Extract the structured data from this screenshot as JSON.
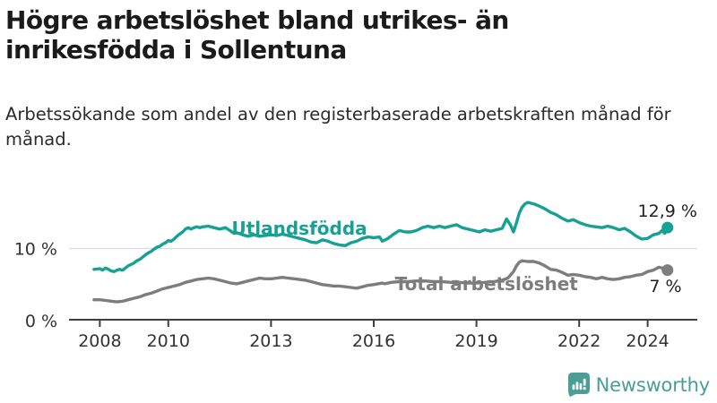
{
  "header": {
    "title_line1": "Högre arbetslöshet bland utrikes- än",
    "title_line2": "inrikesfödda i Sollentuna",
    "subtitle": "Arbetssökande som andel av den registerbaserade arbetskraften månad för månad."
  },
  "footer": {
    "brand": "Newsworthy",
    "logo_icon": "speech-bubble-bar-chart"
  },
  "colors": {
    "accent_teal": "#17A094",
    "line_gray": "#7D7D7D",
    "grid": "#DCDCDC",
    "axis": "#3F3F3F",
    "tick_text": "#333333",
    "end_label_text": "#222222",
    "logo_teal": "#4D9D97"
  },
  "chart_data": {
    "type": "line",
    "title": "Högre arbetslöshet bland utrikes- än inrikesfödda i Sollentuna",
    "xlabel": "",
    "ylabel": "Arbetssökande som andel av den registerbaserade arbetskraften",
    "grid": "horizontal-10-only",
    "legend_position": "inline-labels",
    "xlim": [
      2007.1,
      2025.45
    ],
    "ylim": [
      0,
      18
    ],
    "y_ticks": [
      {
        "value": 0,
        "label": "0 %"
      },
      {
        "value": 10,
        "label": "10 %"
      }
    ],
    "x_ticks": [
      {
        "value": 2008,
        "label": "2008"
      },
      {
        "value": 2010,
        "label": "2010"
      },
      {
        "value": 2013,
        "label": "2013"
      },
      {
        "value": 2016,
        "label": "2016"
      },
      {
        "value": 2019,
        "label": "2019"
      },
      {
        "value": 2022,
        "label": "2022"
      },
      {
        "value": 2024,
        "label": "2024"
      }
    ],
    "series": [
      {
        "name": "Utlandsfödda",
        "color": "#17A094",
        "end_value": 12.9,
        "end_label": "12,9 %",
        "points": [
          [
            2007.83,
            7.1
          ],
          [
            2008.0,
            7.2
          ],
          [
            2008.08,
            7.0
          ],
          [
            2008.17,
            7.3
          ],
          [
            2008.25,
            7.1
          ],
          [
            2008.33,
            6.9
          ],
          [
            2008.42,
            6.8
          ],
          [
            2008.5,
            7.0
          ],
          [
            2008.58,
            7.1
          ],
          [
            2008.67,
            7.0
          ],
          [
            2008.75,
            7.3
          ],
          [
            2008.83,
            7.6
          ],
          [
            2008.92,
            7.8
          ],
          [
            2009.0,
            8.0
          ],
          [
            2009.08,
            8.3
          ],
          [
            2009.17,
            8.5
          ],
          [
            2009.25,
            8.8
          ],
          [
            2009.33,
            9.1
          ],
          [
            2009.42,
            9.4
          ],
          [
            2009.5,
            9.6
          ],
          [
            2009.58,
            9.9
          ],
          [
            2009.67,
            10.2
          ],
          [
            2009.75,
            10.3
          ],
          [
            2009.83,
            10.6
          ],
          [
            2009.92,
            10.8
          ],
          [
            2010.0,
            11.1
          ],
          [
            2010.08,
            11.0
          ],
          [
            2010.17,
            11.3
          ],
          [
            2010.25,
            11.7
          ],
          [
            2010.33,
            12.0
          ],
          [
            2010.42,
            12.3
          ],
          [
            2010.5,
            12.7
          ],
          [
            2010.58,
            12.9
          ],
          [
            2010.67,
            12.7
          ],
          [
            2010.75,
            12.9
          ],
          [
            2010.83,
            13.0
          ],
          [
            2010.92,
            12.9
          ],
          [
            2011.0,
            13.0
          ],
          [
            2011.17,
            13.1
          ],
          [
            2011.33,
            12.9
          ],
          [
            2011.5,
            12.7
          ],
          [
            2011.67,
            12.9
          ],
          [
            2011.83,
            12.4
          ],
          [
            2011.92,
            12.1
          ],
          [
            2012.0,
            12.2
          ],
          [
            2012.17,
            11.9
          ],
          [
            2012.33,
            11.7
          ],
          [
            2012.5,
            11.9
          ],
          [
            2012.67,
            11.7
          ],
          [
            2012.83,
            11.8
          ],
          [
            2013.0,
            11.9
          ],
          [
            2013.17,
            11.8
          ],
          [
            2013.33,
            12.0
          ],
          [
            2013.5,
            11.8
          ],
          [
            2013.67,
            11.6
          ],
          [
            2013.83,
            11.4
          ],
          [
            2014.0,
            11.2
          ],
          [
            2014.17,
            10.9
          ],
          [
            2014.33,
            10.8
          ],
          [
            2014.5,
            11.2
          ],
          [
            2014.67,
            11.0
          ],
          [
            2014.83,
            10.7
          ],
          [
            2015.0,
            10.5
          ],
          [
            2015.17,
            10.4
          ],
          [
            2015.33,
            10.8
          ],
          [
            2015.5,
            11.0
          ],
          [
            2015.67,
            11.4
          ],
          [
            2015.83,
            11.6
          ],
          [
            2016.0,
            11.5
          ],
          [
            2016.17,
            11.6
          ],
          [
            2016.25,
            11.0
          ],
          [
            2016.42,
            11.4
          ],
          [
            2016.58,
            12.0
          ],
          [
            2016.75,
            12.5
          ],
          [
            2016.92,
            12.3
          ],
          [
            2017.08,
            12.3
          ],
          [
            2017.25,
            12.5
          ],
          [
            2017.42,
            12.9
          ],
          [
            2017.58,
            13.1
          ],
          [
            2017.75,
            12.9
          ],
          [
            2017.92,
            13.1
          ],
          [
            2018.08,
            12.9
          ],
          [
            2018.25,
            13.1
          ],
          [
            2018.42,
            13.3
          ],
          [
            2018.58,
            12.9
          ],
          [
            2018.75,
            12.7
          ],
          [
            2018.92,
            12.5
          ],
          [
            2019.08,
            12.3
          ],
          [
            2019.25,
            12.6
          ],
          [
            2019.42,
            12.4
          ],
          [
            2019.58,
            12.6
          ],
          [
            2019.75,
            12.8
          ],
          [
            2019.88,
            14.1
          ],
          [
            2020.0,
            13.2
          ],
          [
            2020.08,
            12.3
          ],
          [
            2020.17,
            13.6
          ],
          [
            2020.25,
            14.9
          ],
          [
            2020.33,
            15.7
          ],
          [
            2020.42,
            16.2
          ],
          [
            2020.5,
            16.4
          ],
          [
            2020.67,
            16.2
          ],
          [
            2020.83,
            15.9
          ],
          [
            2021.0,
            15.5
          ],
          [
            2021.17,
            15.0
          ],
          [
            2021.33,
            14.7
          ],
          [
            2021.5,
            14.2
          ],
          [
            2021.67,
            13.8
          ],
          [
            2021.83,
            14.0
          ],
          [
            2022.0,
            13.6
          ],
          [
            2022.17,
            13.3
          ],
          [
            2022.33,
            13.1
          ],
          [
            2022.5,
            13.0
          ],
          [
            2022.67,
            12.9
          ],
          [
            2022.83,
            13.1
          ],
          [
            2023.0,
            12.9
          ],
          [
            2023.17,
            12.6
          ],
          [
            2023.33,
            12.8
          ],
          [
            2023.5,
            12.3
          ],
          [
            2023.67,
            11.7
          ],
          [
            2023.83,
            11.3
          ],
          [
            2024.0,
            11.4
          ],
          [
            2024.17,
            11.9
          ],
          [
            2024.33,
            12.1
          ],
          [
            2024.42,
            12.5
          ],
          [
            2024.5,
            12.1
          ],
          [
            2024.58,
            12.9
          ]
        ]
      },
      {
        "name": "Total arbetslöshet",
        "color": "#7D7D7D",
        "end_value": 7,
        "end_label": "7 %",
        "points": [
          [
            2007.83,
            2.9
          ],
          [
            2008.0,
            2.9
          ],
          [
            2008.17,
            2.8
          ],
          [
            2008.33,
            2.7
          ],
          [
            2008.5,
            2.6
          ],
          [
            2008.67,
            2.7
          ],
          [
            2008.83,
            2.9
          ],
          [
            2009.0,
            3.1
          ],
          [
            2009.17,
            3.3
          ],
          [
            2009.33,
            3.6
          ],
          [
            2009.5,
            3.8
          ],
          [
            2009.67,
            4.1
          ],
          [
            2009.83,
            4.4
          ],
          [
            2010.0,
            4.6
          ],
          [
            2010.17,
            4.8
          ],
          [
            2010.33,
            5.0
          ],
          [
            2010.5,
            5.3
          ],
          [
            2010.67,
            5.5
          ],
          [
            2010.83,
            5.7
          ],
          [
            2011.0,
            5.8
          ],
          [
            2011.17,
            5.9
          ],
          [
            2011.33,
            5.8
          ],
          [
            2011.5,
            5.6
          ],
          [
            2011.67,
            5.4
          ],
          [
            2011.83,
            5.2
          ],
          [
            2012.0,
            5.1
          ],
          [
            2012.17,
            5.3
          ],
          [
            2012.33,
            5.5
          ],
          [
            2012.5,
            5.7
          ],
          [
            2012.67,
            5.9
          ],
          [
            2012.83,
            5.8
          ],
          [
            2013.0,
            5.8
          ],
          [
            2013.17,
            5.9
          ],
          [
            2013.33,
            6.0
          ],
          [
            2013.5,
            5.9
          ],
          [
            2013.67,
            5.8
          ],
          [
            2013.83,
            5.7
          ],
          [
            2014.0,
            5.6
          ],
          [
            2014.17,
            5.4
          ],
          [
            2014.33,
            5.2
          ],
          [
            2014.5,
            5.0
          ],
          [
            2014.67,
            4.9
          ],
          [
            2014.83,
            4.8
          ],
          [
            2015.0,
            4.8
          ],
          [
            2015.17,
            4.7
          ],
          [
            2015.33,
            4.6
          ],
          [
            2015.5,
            4.5
          ],
          [
            2015.67,
            4.7
          ],
          [
            2015.83,
            4.9
          ],
          [
            2016.0,
            5.0
          ],
          [
            2016.25,
            5.2
          ],
          [
            2016.33,
            5.1
          ],
          [
            2016.5,
            5.3
          ],
          [
            2016.75,
            5.4
          ],
          [
            2017.0,
            5.4
          ],
          [
            2017.25,
            5.5
          ],
          [
            2017.5,
            5.5
          ],
          [
            2017.75,
            5.4
          ],
          [
            2018.0,
            5.4
          ],
          [
            2018.25,
            5.3
          ],
          [
            2018.5,
            5.3
          ],
          [
            2018.75,
            5.2
          ],
          [
            2019.0,
            5.2
          ],
          [
            2019.25,
            5.3
          ],
          [
            2019.5,
            5.4
          ],
          [
            2019.75,
            5.6
          ],
          [
            2019.92,
            5.9
          ],
          [
            2020.08,
            6.8
          ],
          [
            2020.17,
            7.6
          ],
          [
            2020.25,
            8.1
          ],
          [
            2020.33,
            8.3
          ],
          [
            2020.5,
            8.2
          ],
          [
            2020.67,
            8.2
          ],
          [
            2020.83,
            8.0
          ],
          [
            2021.0,
            7.6
          ],
          [
            2021.17,
            7.1
          ],
          [
            2021.33,
            7.0
          ],
          [
            2021.5,
            6.7
          ],
          [
            2021.67,
            6.3
          ],
          [
            2021.83,
            6.4
          ],
          [
            2022.0,
            6.3
          ],
          [
            2022.17,
            6.1
          ],
          [
            2022.33,
            6.0
          ],
          [
            2022.5,
            5.8
          ],
          [
            2022.67,
            6.0
          ],
          [
            2022.83,
            5.8
          ],
          [
            2023.0,
            5.7
          ],
          [
            2023.17,
            5.8
          ],
          [
            2023.33,
            6.0
          ],
          [
            2023.5,
            6.1
          ],
          [
            2023.67,
            6.3
          ],
          [
            2023.83,
            6.4
          ],
          [
            2024.0,
            6.8
          ],
          [
            2024.17,
            7.0
          ],
          [
            2024.33,
            7.4
          ],
          [
            2024.5,
            7.2
          ],
          [
            2024.58,
            7.0
          ]
        ]
      }
    ],
    "annotations": [
      {
        "text": "Utlandsfödda",
        "x": 2011.85,
        "y": 11.9,
        "color": "#17A094",
        "bold": true,
        "anchor": "start",
        "size": 20
      },
      {
        "text": "Total arbetslöshet",
        "x": 2016.62,
        "y": 4.2,
        "color": "#7D7D7D",
        "bold": true,
        "anchor": "start",
        "size": 20
      },
      {
        "text": "12,9 %",
        "x": 2024.58,
        "y": 14.4,
        "color": "#222222",
        "bold": false,
        "anchor": "middle",
        "size": 19
      },
      {
        "text": "7 %",
        "x": 2024.52,
        "y": 3.95,
        "color": "#222222",
        "bold": false,
        "anchor": "middle",
        "size": 19
      }
    ]
  }
}
